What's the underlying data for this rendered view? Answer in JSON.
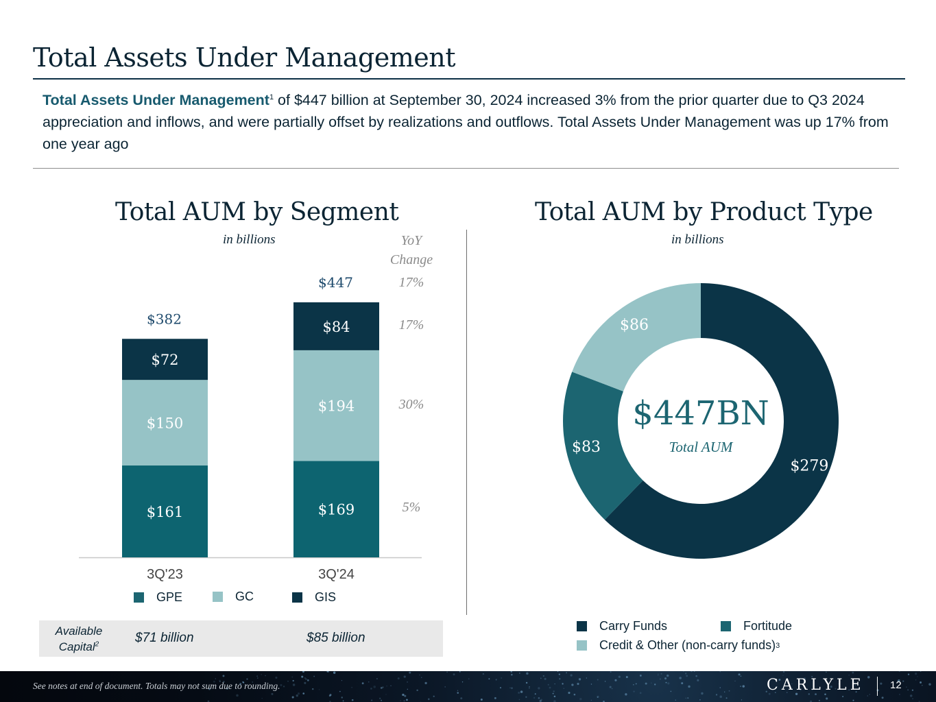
{
  "page": {
    "title": "Total Assets Under Management",
    "summary_lead": "Total Assets Under Management",
    "summary_sup": "1",
    "summary_rest": " of $447 billion at September 30, 2024 increased 3% from the prior quarter due to Q3 2024 appreciation and inflows, and were partially offset by realizations and outflows. Total Assets Under Management was up 17% from one year ago"
  },
  "segment_chart": {
    "title": "Total AUM by Segment",
    "subtitle": "in billions",
    "yoy_header_line1": "YoY",
    "yoy_header_line2": "Change",
    "yoy_total": "17%",
    "yoy_values": [
      "17%",
      "30%",
      "5%"
    ],
    "legend": [
      "GPE",
      "GC",
      "GIS"
    ],
    "available_capital_label_line1": "Available",
    "available_capital_label_line2": "Capital",
    "available_capital_sup": "2",
    "available_capital_values": [
      "$71 billion",
      "$85 billion"
    ]
  },
  "product_chart": {
    "title": "Total AUM by Product Type",
    "subtitle": "in billions",
    "center_value": "$447BN",
    "center_label": "Total AUM",
    "legend": [
      "Carry Funds",
      "Fortitude",
      "Credit & Other (non-carry funds)"
    ],
    "legend_sup": "3"
  },
  "colors": {
    "gpe": "#0d6470",
    "gc": "#96c3c6",
    "gis": "#0b3447",
    "carry": "#0b3447",
    "fortitude": "#1c6571",
    "credit": "#96c3c6",
    "title_navy": "#0b2433",
    "total_label": "#1e4a6c"
  },
  "chart_data": [
    {
      "type": "bar",
      "stacked": true,
      "title": "Total AUM by Segment",
      "categories": [
        "3Q'23",
        "3Q'24"
      ],
      "series": [
        {
          "name": "GPE",
          "values": [
            161,
            169
          ],
          "labels": [
            "$161",
            "$169"
          ]
        },
        {
          "name": "GC",
          "values": [
            150,
            194
          ],
          "labels": [
            "$150",
            "$194"
          ]
        },
        {
          "name": "GIS",
          "values": [
            72,
            84
          ],
          "labels": [
            "$72",
            "$84"
          ]
        }
      ],
      "totals": [
        382,
        447
      ],
      "total_labels": [
        "$382",
        "$447"
      ],
      "legend_position": "bottom"
    },
    {
      "type": "pie",
      "donut": true,
      "title": "Total AUM by Product Type",
      "slices": [
        {
          "name": "Carry Funds",
          "value": 279,
          "label": "$279"
        },
        {
          "name": "Fortitude",
          "value": 83,
          "label": "$83"
        },
        {
          "name": "Credit & Other (non-carry funds)",
          "value": 86,
          "label": "$86"
        }
      ],
      "total": 447,
      "legend_position": "bottom"
    }
  ],
  "footer": {
    "note": "See notes at end of document. Totals may not sum due to rounding.",
    "logo": "CARLYLE",
    "page_number": "12"
  }
}
